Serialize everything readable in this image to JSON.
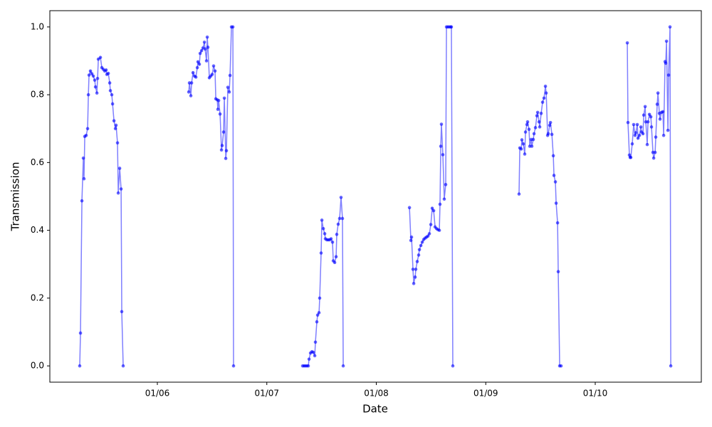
{
  "chart_data": {
    "type": "line",
    "xlabel": "Date",
    "ylabel": "Transmission",
    "color": "#0000ff",
    "xlim": [
      5.018,
      10.969
    ],
    "ylim": [
      -0.048,
      1.048
    ],
    "xticks": [
      {
        "value": 6,
        "label": "01/06"
      },
      {
        "value": 7,
        "label": "01/07"
      },
      {
        "value": 8,
        "label": "01/08"
      },
      {
        "value": 9,
        "label": "01/09"
      },
      {
        "value": 10,
        "label": "01/10"
      }
    ],
    "yticks": [
      {
        "value": 0,
        "label": "0.0"
      },
      0.2,
      0.4,
      0.6,
      0.8,
      {
        "value": 1,
        "label": "1.0"
      }
    ],
    "x": [
      5.291,
      5.298,
      5.311,
      5.324,
      5.33,
      5.337,
      5.35,
      5.363,
      5.37,
      5.376,
      5.389,
      5.402,
      5.415,
      5.428,
      5.435,
      5.448,
      5.454,
      5.461,
      5.48,
      5.493,
      5.506,
      5.519,
      5.532,
      5.539,
      5.552,
      5.565,
      5.571,
      5.584,
      5.591,
      5.604,
      5.617,
      5.623,
      5.636,
      5.643,
      5.656,
      5.669,
      5.675,
      5.688,
      6.0,
      6.287,
      6.293,
      6.306,
      6.313,
      6.326,
      6.339,
      6.352,
      6.365,
      6.371,
      6.384,
      6.391,
      6.404,
      6.417,
      6.43,
      6.436,
      6.449,
      6.456,
      6.462,
      6.475,
      6.488,
      6.501,
      6.514,
      6.527,
      6.534,
      6.547,
      6.553,
      6.56,
      6.573,
      6.586,
      6.592,
      6.605,
      6.612,
      6.625,
      6.631,
      6.644,
      6.657,
      6.664,
      6.677,
      6.69,
      6.696,
      7.0,
      7.327,
      7.34,
      7.353,
      7.366,
      7.379,
      7.386,
      7.399,
      7.412,
      7.425,
      7.438,
      7.444,
      7.457,
      7.464,
      7.477,
      7.483,
      7.496,
      7.503,
      7.516,
      7.529,
      7.535,
      7.548,
      7.561,
      7.574,
      7.587,
      7.6,
      7.607,
      7.62,
      7.633,
      7.639,
      7.652,
      7.665,
      7.678,
      7.691,
      7.698,
      8.0,
      8.303,
      8.316,
      8.322,
      8.335,
      8.342,
      8.355,
      8.361,
      8.374,
      8.387,
      8.394,
      8.407,
      8.42,
      8.433,
      8.446,
      8.459,
      8.472,
      8.485,
      8.498,
      8.511,
      8.524,
      8.537,
      8.55,
      8.563,
      8.576,
      8.582,
      8.589,
      8.595,
      8.608,
      8.621,
      8.634,
      8.641,
      8.654,
      8.667,
      8.68,
      8.686,
      8.699,
      9.0,
      9.304,
      9.311,
      9.324,
      9.33,
      9.343,
      9.356,
      9.363,
      9.376,
      9.382,
      9.395,
      9.402,
      9.415,
      9.421,
      9.434,
      9.441,
      9.454,
      9.467,
      9.474,
      9.487,
      9.493,
      9.506,
      9.519,
      9.532,
      9.545,
      9.552,
      9.565,
      9.571,
      9.584,
      9.591,
      9.604,
      9.617,
      9.623,
      9.636,
      9.643,
      9.656,
      9.662,
      9.675,
      9.688,
      10.0,
      10.293,
      10.299,
      10.312,
      10.319,
      10.325,
      10.338,
      10.351,
      10.364,
      10.371,
      10.384,
      10.391,
      10.404,
      10.417,
      10.423,
      10.436,
      10.443,
      10.456,
      10.462,
      10.475,
      10.482,
      10.495,
      10.508,
      10.514,
      10.527,
      10.534,
      10.547,
      10.553,
      10.566,
      10.573,
      10.586,
      10.592,
      10.605,
      10.618,
      10.625,
      10.638,
      10.644,
      10.651,
      10.664,
      10.67,
      10.683,
      10.69
    ],
    "values": [
      0,
      0.097,
      0.487,
      0.613,
      0.552,
      0.677,
      0.68,
      0.7,
      0.8,
      0.858,
      0.87,
      0.862,
      0.855,
      0.843,
      0.823,
      0.805,
      0.848,
      0.905,
      0.91,
      0.88,
      0.875,
      0.87,
      0.873,
      0.86,
      0.863,
      0.835,
      0.812,
      0.8,
      0.773,
      0.723,
      0.7,
      0.71,
      0.658,
      0.51,
      0.583,
      0.522,
      0.16,
      0,
      null,
      0.808,
      0.835,
      0.797,
      0.835,
      0.865,
      0.855,
      0.852,
      0.88,
      0.897,
      0.89,
      0.922,
      0.93,
      0.938,
      0.955,
      0.935,
      0.9,
      0.97,
      0.94,
      0.85,
      0.855,
      0.86,
      0.885,
      0.87,
      0.788,
      0.785,
      0.757,
      0.783,
      0.743,
      0.637,
      0.65,
      0.69,
      0.79,
      0.612,
      0.635,
      0.822,
      0.808,
      0.857,
      1.0,
      1.0,
      0,
      null,
      0,
      0,
      0,
      0,
      0,
      0.02,
      0.038,
      0.042,
      0.04,
      0.03,
      0.07,
      0.13,
      0.15,
      0.157,
      0.2,
      0.333,
      0.43,
      0.405,
      0.39,
      0.375,
      0.372,
      0.372,
      0.372,
      0.375,
      0.365,
      0.31,
      0.305,
      0.322,
      0.388,
      0.418,
      0.435,
      0.497,
      0.435,
      0,
      null,
      0.467,
      0.37,
      0.38,
      0.285,
      0.243,
      0.262,
      0.285,
      0.308,
      0.327,
      0.343,
      0.355,
      0.365,
      0.373,
      0.377,
      0.38,
      0.383,
      0.39,
      0.417,
      0.465,
      0.458,
      0.41,
      0.405,
      0.402,
      0.4,
      0.477,
      0.648,
      0.713,
      0.623,
      0.492,
      0.535,
      1.0,
      1.0,
      1.0,
      1.0,
      1.0,
      0,
      null,
      0.507,
      0.643,
      0.64,
      0.667,
      0.655,
      0.625,
      0.69,
      0.712,
      0.72,
      0.698,
      0.648,
      0.668,
      0.648,
      0.668,
      0.685,
      0.703,
      0.738,
      0.748,
      0.72,
      0.705,
      0.745,
      0.778,
      0.79,
      0.825,
      0.805,
      0.68,
      0.685,
      0.71,
      0.718,
      0.683,
      0.62,
      0.562,
      0.543,
      0.48,
      0.422,
      0.278,
      0,
      0,
      null,
      0.953,
      0.718,
      0.622,
      0.615,
      0.615,
      0.655,
      0.712,
      0.68,
      0.688,
      0.712,
      0.672,
      0.68,
      0.705,
      0.69,
      0.685,
      0.74,
      0.765,
      0.72,
      0.653,
      0.72,
      0.742,
      0.735,
      0.705,
      0.63,
      0.613,
      0.63,
      0.675,
      0.772,
      0.805,
      0.745,
      0.728,
      0.748,
      0.75,
      0.68,
      0.898,
      0.893,
      0.958,
      0.695,
      0.858,
      1.0,
      0
    ]
  }
}
